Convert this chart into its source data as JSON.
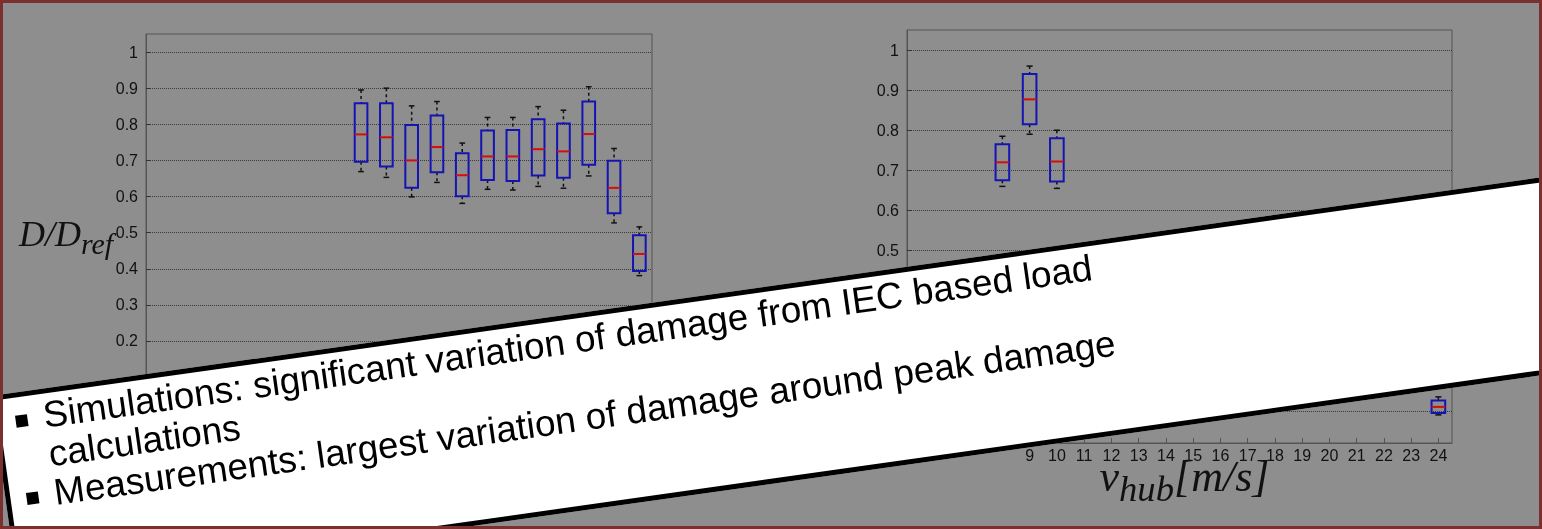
{
  "chart_data": [
    {
      "type": "box",
      "ylabel": "D/D$_{ref}$",
      "categories": [
        null,
        null,
        null,
        null,
        null,
        null,
        null,
        null,
        null,
        null,
        null,
        null,
        null,
        null,
        null,
        null,
        null,
        null,
        null,
        null
      ],
      "ylim": [
        0.02,
        1.05
      ],
      "yticks": [
        {
          "value": 0.1,
          "label": null
        },
        0.2,
        0.3,
        0.4,
        0.5,
        0.6,
        0.7,
        0.8,
        0.9,
        1
      ],
      "grid": "y",
      "tick_labels": "y",
      "series": [
        {
          "color": "#1414b4",
          "boxes": [
            null,
            null,
            null,
            null,
            null,
            null,
            null,
            null,
            {
              "low": 0.669,
              "q1": 0.696,
              "median": 0.772,
              "q3": 0.858,
              "high": 0.895
            },
            {
              "low": 0.653,
              "q1": 0.683,
              "median": 0.764,
              "q3": 0.858,
              "high": 0.9
            },
            {
              "low": 0.599,
              "q1": 0.624,
              "median": 0.7,
              "q3": 0.798,
              "high": 0.851
            },
            {
              "low": 0.639,
              "q1": 0.667,
              "median": 0.737,
              "q3": 0.824,
              "high": 0.863
            },
            {
              "low": 0.581,
              "q1": 0.601,
              "median": 0.659,
              "q3": 0.72,
              "high": 0.748
            },
            {
              "low": 0.62,
              "q1": 0.646,
              "median": 0.711,
              "q3": 0.783,
              "high": 0.819
            },
            {
              "low": 0.618,
              "q1": 0.643,
              "median": 0.711,
              "q3": 0.784,
              "high": 0.819
            },
            {
              "low": 0.628,
              "q1": 0.658,
              "median": 0.731,
              "q3": 0.814,
              "high": 0.849
            },
            {
              "low": 0.623,
              "q1": 0.652,
              "median": 0.725,
              "q3": 0.802,
              "high": 0.839
            },
            {
              "low": 0.657,
              "q1": 0.688,
              "median": 0.773,
              "q3": 0.863,
              "high": 0.904
            },
            {
              "low": 0.527,
              "q1": 0.554,
              "median": 0.624,
              "q3": 0.699,
              "high": 0.733
            },
            {
              "low": 0.381,
              "q1": 0.394,
              "median": 0.441,
              "q3": 0.493,
              "high": 0.516
            }
          ]
        }
      ],
      "annotations": [
        "Simulations: significant variation of damage from IEC based load calculations",
        "Measurements: largest variation of damage around peak damage"
      ]
    },
    {
      "type": "box",
      "xlabel": "v$_{hub}$[m/s]",
      "categories": [
        null,
        null,
        null,
        null,
        "9",
        "10",
        "11",
        "12",
        "13",
        "14",
        "15",
        "16",
        "17",
        "18",
        "19",
        "20",
        "21",
        "22",
        "23",
        "24"
      ],
      "ylim": [
        0.02,
        1.05
      ],
      "yticks": [
        {
          "value": 0.1,
          "label": null
        },
        {
          "value": 0.2,
          "label": null
        },
        {
          "value": 0.3,
          "label": null
        },
        {
          "value": 0.4,
          "label": null
        },
        0.5,
        0.6,
        0.7,
        0.8,
        0.9,
        1
      ],
      "grid": "y",
      "series": [
        {
          "color": "#1414b4",
          "boxes": [
            null,
            null,
            null,
            {
              "low": 0.66,
              "q1": 0.675,
              "median": 0.72,
              "q3": 0.765,
              "high": 0.785
            },
            {
              "low": 0.79,
              "q1": 0.815,
              "median": 0.877,
              "q3": 0.94,
              "high": 0.96
            },
            {
              "low": 0.655,
              "q1": 0.672,
              "median": 0.722,
              "q3": 0.78,
              "high": 0.8
            },
            null,
            null,
            null,
            null,
            null,
            null,
            null,
            null,
            null,
            null,
            null,
            null,
            null,
            {
              "low": 0.09,
              "q1": 0.095,
              "median": 0.11,
              "q3": 0.126,
              "high": 0.135
            }
          ]
        }
      ]
    }
  ]
}
